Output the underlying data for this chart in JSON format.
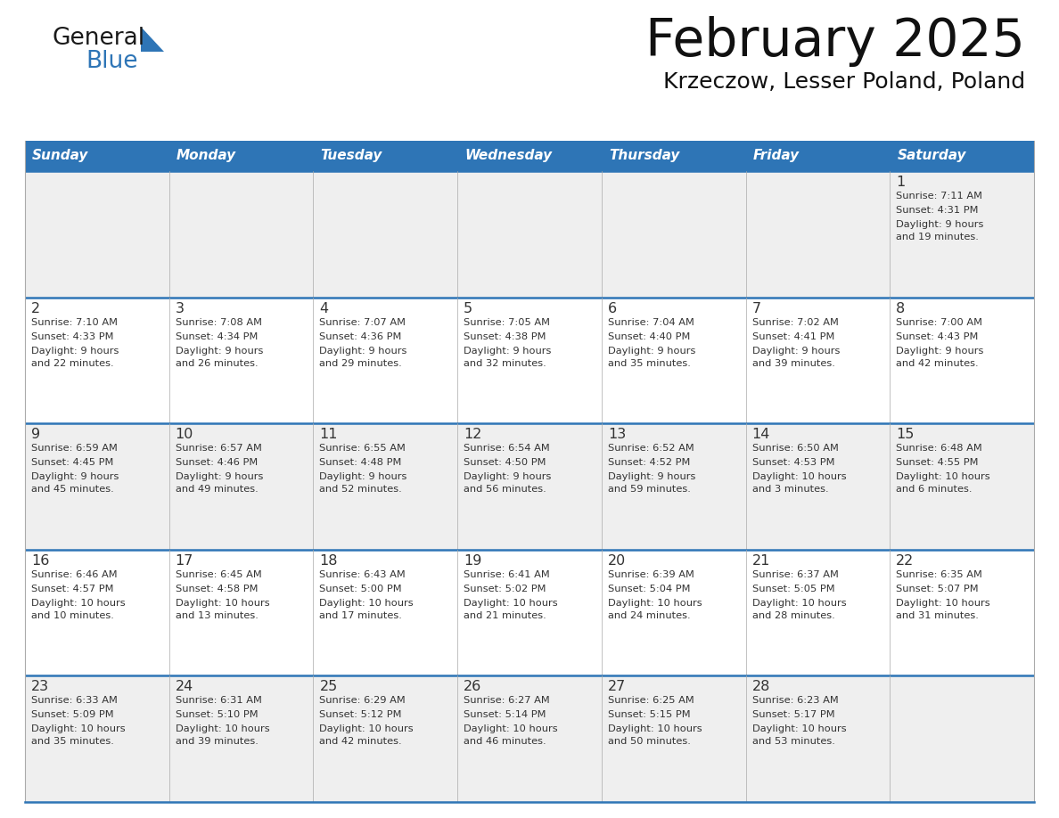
{
  "title": "February 2025",
  "subtitle": "Krzeczow, Lesser Poland, Poland",
  "days_of_week": [
    "Sunday",
    "Monday",
    "Tuesday",
    "Wednesday",
    "Thursday",
    "Friday",
    "Saturday"
  ],
  "header_bg": "#2E75B6",
  "header_text_color": "#FFFFFF",
  "row_bg_odd": "#EFEFEF",
  "row_bg_even": "#FFFFFF",
  "divider_color": "#2E75B6",
  "cell_border_color": "#AAAAAA",
  "text_color": "#333333",
  "title_color": "#111111",
  "subtitle_color": "#111111",
  "calendar_data": [
    [
      {
        "day": null,
        "sunrise": null,
        "sunset": null,
        "daylight": null
      },
      {
        "day": null,
        "sunrise": null,
        "sunset": null,
        "daylight": null
      },
      {
        "day": null,
        "sunrise": null,
        "sunset": null,
        "daylight": null
      },
      {
        "day": null,
        "sunrise": null,
        "sunset": null,
        "daylight": null
      },
      {
        "day": null,
        "sunrise": null,
        "sunset": null,
        "daylight": null
      },
      {
        "day": null,
        "sunrise": null,
        "sunset": null,
        "daylight": null
      },
      {
        "day": 1,
        "sunrise": "7:11 AM",
        "sunset": "4:31 PM",
        "daylight": "9 hours\nand 19 minutes."
      }
    ],
    [
      {
        "day": 2,
        "sunrise": "7:10 AM",
        "sunset": "4:33 PM",
        "daylight": "9 hours\nand 22 minutes."
      },
      {
        "day": 3,
        "sunrise": "7:08 AM",
        "sunset": "4:34 PM",
        "daylight": "9 hours\nand 26 minutes."
      },
      {
        "day": 4,
        "sunrise": "7:07 AM",
        "sunset": "4:36 PM",
        "daylight": "9 hours\nand 29 minutes."
      },
      {
        "day": 5,
        "sunrise": "7:05 AM",
        "sunset": "4:38 PM",
        "daylight": "9 hours\nand 32 minutes."
      },
      {
        "day": 6,
        "sunrise": "7:04 AM",
        "sunset": "4:40 PM",
        "daylight": "9 hours\nand 35 minutes."
      },
      {
        "day": 7,
        "sunrise": "7:02 AM",
        "sunset": "4:41 PM",
        "daylight": "9 hours\nand 39 minutes."
      },
      {
        "day": 8,
        "sunrise": "7:00 AM",
        "sunset": "4:43 PM",
        "daylight": "9 hours\nand 42 minutes."
      }
    ],
    [
      {
        "day": 9,
        "sunrise": "6:59 AM",
        "sunset": "4:45 PM",
        "daylight": "9 hours\nand 45 minutes."
      },
      {
        "day": 10,
        "sunrise": "6:57 AM",
        "sunset": "4:46 PM",
        "daylight": "9 hours\nand 49 minutes."
      },
      {
        "day": 11,
        "sunrise": "6:55 AM",
        "sunset": "4:48 PM",
        "daylight": "9 hours\nand 52 minutes."
      },
      {
        "day": 12,
        "sunrise": "6:54 AM",
        "sunset": "4:50 PM",
        "daylight": "9 hours\nand 56 minutes."
      },
      {
        "day": 13,
        "sunrise": "6:52 AM",
        "sunset": "4:52 PM",
        "daylight": "9 hours\nand 59 minutes."
      },
      {
        "day": 14,
        "sunrise": "6:50 AM",
        "sunset": "4:53 PM",
        "daylight": "10 hours\nand 3 minutes."
      },
      {
        "day": 15,
        "sunrise": "6:48 AM",
        "sunset": "4:55 PM",
        "daylight": "10 hours\nand 6 minutes."
      }
    ],
    [
      {
        "day": 16,
        "sunrise": "6:46 AM",
        "sunset": "4:57 PM",
        "daylight": "10 hours\nand 10 minutes."
      },
      {
        "day": 17,
        "sunrise": "6:45 AM",
        "sunset": "4:58 PM",
        "daylight": "10 hours\nand 13 minutes."
      },
      {
        "day": 18,
        "sunrise": "6:43 AM",
        "sunset": "5:00 PM",
        "daylight": "10 hours\nand 17 minutes."
      },
      {
        "day": 19,
        "sunrise": "6:41 AM",
        "sunset": "5:02 PM",
        "daylight": "10 hours\nand 21 minutes."
      },
      {
        "day": 20,
        "sunrise": "6:39 AM",
        "sunset": "5:04 PM",
        "daylight": "10 hours\nand 24 minutes."
      },
      {
        "day": 21,
        "sunrise": "6:37 AM",
        "sunset": "5:05 PM",
        "daylight": "10 hours\nand 28 minutes."
      },
      {
        "day": 22,
        "sunrise": "6:35 AM",
        "sunset": "5:07 PM",
        "daylight": "10 hours\nand 31 minutes."
      }
    ],
    [
      {
        "day": 23,
        "sunrise": "6:33 AM",
        "sunset": "5:09 PM",
        "daylight": "10 hours\nand 35 minutes."
      },
      {
        "day": 24,
        "sunrise": "6:31 AM",
        "sunset": "5:10 PM",
        "daylight": "10 hours\nand 39 minutes."
      },
      {
        "day": 25,
        "sunrise": "6:29 AM",
        "sunset": "5:12 PM",
        "daylight": "10 hours\nand 42 minutes."
      },
      {
        "day": 26,
        "sunrise": "6:27 AM",
        "sunset": "5:14 PM",
        "daylight": "10 hours\nand 46 minutes."
      },
      {
        "day": 27,
        "sunrise": "6:25 AM",
        "sunset": "5:15 PM",
        "daylight": "10 hours\nand 50 minutes."
      },
      {
        "day": 28,
        "sunrise": "6:23 AM",
        "sunset": "5:17 PM",
        "daylight": "10 hours\nand 53 minutes."
      },
      {
        "day": null,
        "sunrise": null,
        "sunset": null,
        "daylight": null
      }
    ]
  ],
  "logo_color_general": "#1a1a1a",
  "logo_color_blue": "#2E75B6",
  "logo_triangle_color": "#2E75B6",
  "figsize": [
    11.88,
    9.18
  ],
  "dpi": 100
}
